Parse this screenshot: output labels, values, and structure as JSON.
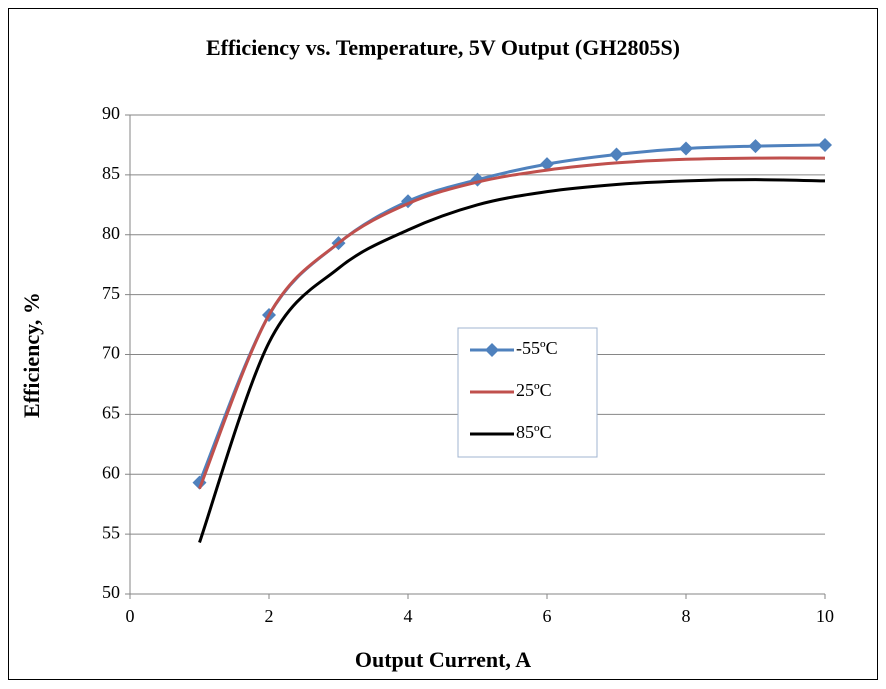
{
  "chart_data": {
    "type": "line",
    "title": "Efficiency vs. Temperature, 5V Output (GH2805S)",
    "xlabel": "Output Current, A",
    "ylabel": "Efficiency, %",
    "x": [
      1,
      2,
      3,
      4,
      5,
      6,
      7,
      8,
      9,
      10
    ],
    "series": [
      {
        "name": "-55ºC",
        "color": "#4f81bd",
        "marker": "diamond",
        "values": [
          59.3,
          73.3,
          79.3,
          82.8,
          84.6,
          85.9,
          86.7,
          87.2,
          87.4,
          87.5
        ]
      },
      {
        "name": "25ºC",
        "color": "#c0504d",
        "values": [
          58.8,
          73.3,
          79.3,
          82.6,
          84.4,
          85.4,
          86.0,
          86.3,
          86.4,
          86.4
        ]
      },
      {
        "name": "85ºC",
        "color": "#000000",
        "values": [
          54.3,
          71.0,
          77.2,
          80.4,
          82.5,
          83.6,
          84.2,
          84.5,
          84.6,
          84.5
        ]
      }
    ],
    "xlim": [
      0,
      10
    ],
    "xticks": [
      0,
      2,
      4,
      6,
      8,
      10
    ],
    "ylim": [
      50,
      90
    ],
    "yticks": [
      50,
      55,
      60,
      65,
      70,
      75,
      80,
      85,
      90
    ],
    "grid": true,
    "legend": "center"
  }
}
